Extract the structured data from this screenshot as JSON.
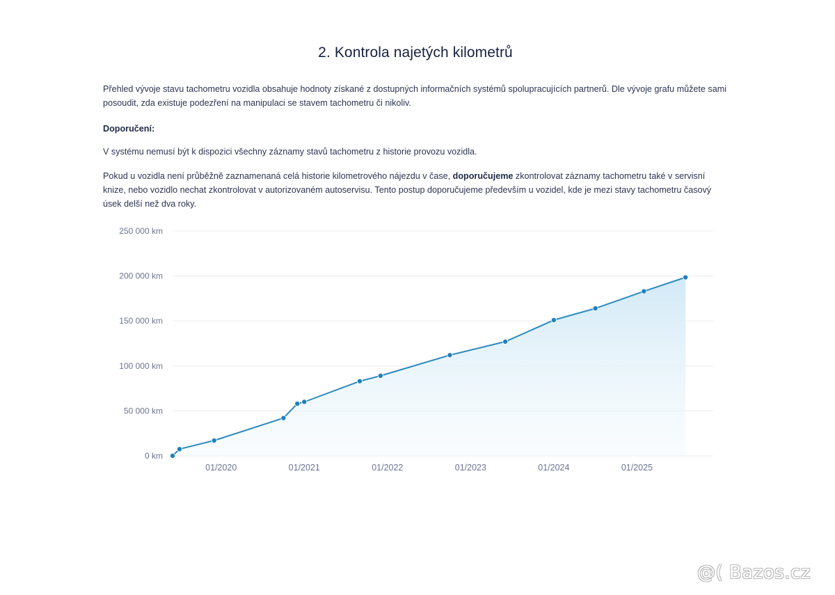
{
  "heading": "2. Kontrola najetých kilometrů",
  "paragraphs": {
    "intro": "Přehled vývoje stavu tachometru vozidla obsahuje hodnoty získané z dostupných informačních systémů spolupracujících partnerů. Dle vývoje grafu můžete sami posoudit, zda existuje podezření na manipulaci se stavem tachometru či nikoliv.",
    "recommendation_heading": "Doporučení:",
    "note1": "V systému nemusí být k dispozici všechny záznamy stavů tachometru z historie provozu vozidla.",
    "note2_before": "Pokud u vozidla není průběžně zaznamenaná celá historie kilometrového nájezdu v čase, ",
    "note2_bold": "doporučujeme",
    "note2_after": " zkontrolovat záznamy tachometru také v servisní knize, nebo vozidlo nechat zkontrolovat v autorizovaném autoservisu. Tento postup doporučujeme především u vozidel, kde je mezi stavy tachometru časový úsek delší než dva roky."
  },
  "chart_data": {
    "type": "area",
    "title": "",
    "xlabel": "",
    "ylabel": "",
    "ylim": [
      0,
      250000
    ],
    "xlim": [
      "2019-06",
      "2025-12"
    ],
    "y_ticks": [
      0,
      50000,
      100000,
      150000,
      200000,
      250000
    ],
    "y_tick_labels": [
      "0 km",
      "50 000 km",
      "100 000 km",
      "150 000 km",
      "200 000 km",
      "250 000 km"
    ],
    "x_ticks": [
      "2020-01",
      "2021-01",
      "2022-01",
      "2023-01",
      "2024-01",
      "2025-01"
    ],
    "x_tick_labels": [
      "01/2020",
      "01/2021",
      "01/2022",
      "01/2023",
      "01/2024",
      "01/2025"
    ],
    "grid": true,
    "legend": "none",
    "colors": {
      "line": "#2b8ac0",
      "point": "#2080bd",
      "fill": "#d6ecf8",
      "grid": "#ececf2"
    },
    "series": [
      {
        "x": [
          "2019-06",
          "2019-07",
          "2019-12",
          "2020-10",
          "2020-12",
          "2021-01",
          "2021-09",
          "2021-12",
          "2022-10",
          "2023-06",
          "2024-01",
          "2024-07",
          "2025-02",
          "2025-08"
        ],
        "y": [
          0,
          7500,
          17000,
          42000,
          58000,
          60000,
          83000,
          89000,
          112000,
          127000,
          151000,
          164000,
          183000,
          198500
        ]
      }
    ]
  },
  "watermark": "@( Bazos.cz"
}
